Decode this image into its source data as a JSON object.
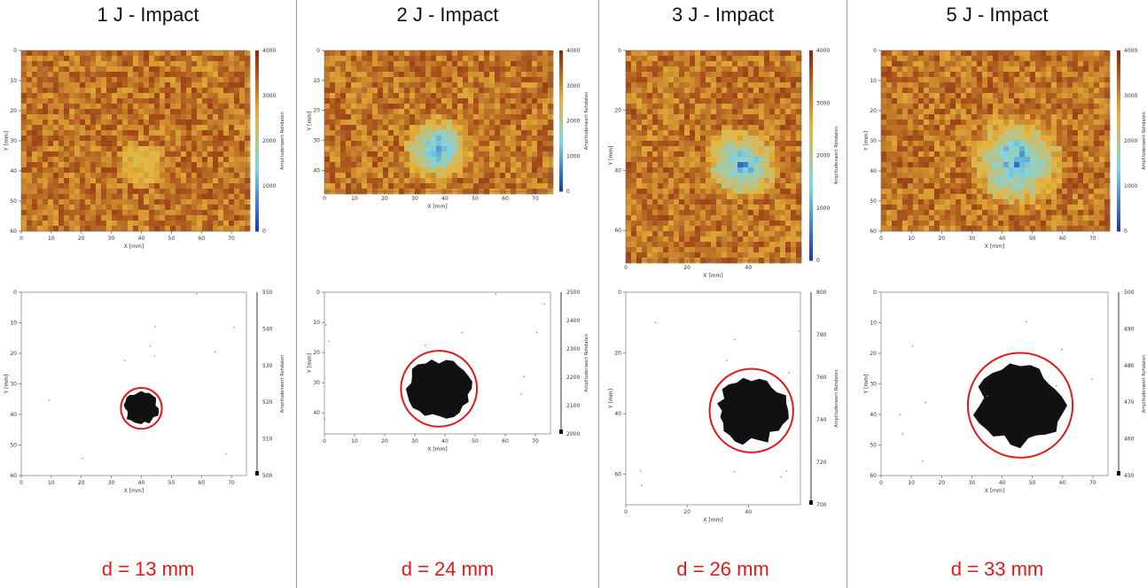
{
  "colors": {
    "heat_low": "#1d3fa8",
    "heat_mid": "#7fd6e6",
    "heat_high": "#e7b33a",
    "heat_max": "#8e2a10",
    "marker": "#e01a1a",
    "divider": "#9a9a9a"
  },
  "panels": [
    {
      "title": "1 J - Impact",
      "diameter_label": "d = 13 mm"
    },
    {
      "title": "2 J - Impact",
      "diameter_label": "d = 24 mm"
    },
    {
      "title": "3 J - Impact",
      "diameter_label": "d = 26 mm"
    },
    {
      "title": "5 J - Impact",
      "diameter_label": "d = 33 mm"
    }
  ],
  "chart_data": [
    {
      "type": "heatmap",
      "panel": "1 J - Impact",
      "view": "amplitude",
      "xlabel": "X [mm]",
      "ylabel": "Y [mm]",
      "colorbar_label": "Amplitudenwert Rohdaten",
      "xlim": [
        0,
        75
      ],
      "ylim": [
        0,
        60
      ],
      "y_inverted": true,
      "x_ticks": [
        0,
        10,
        20,
        30,
        40,
        50,
        60,
        70
      ],
      "y_ticks": [
        0,
        10,
        20,
        30,
        40,
        50,
        60
      ],
      "colorbar_range": [
        0,
        4000
      ],
      "colorbar_ticks": [
        0,
        1000,
        2000,
        3000,
        4000
      ],
      "damage_center": [
        40,
        38
      ],
      "damage_diameter_mm": 13
    },
    {
      "type": "heatmap",
      "panel": "1 J - Impact",
      "view": "thresholded",
      "xlabel": "X [mm]",
      "ylabel": "Y [mm]",
      "colorbar_label": "Amplitudenwert Rohdaten",
      "xlim": [
        0,
        75
      ],
      "ylim": [
        0,
        60
      ],
      "y_inverted": true,
      "x_ticks": [
        0,
        10,
        20,
        30,
        40,
        50,
        60,
        70
      ],
      "y_ticks": [
        0,
        10,
        20,
        30,
        40,
        50,
        60
      ],
      "colorbar_range": [
        500,
        550
      ],
      "colorbar_ticks": [
        500,
        510,
        520,
        530,
        540,
        550
      ],
      "damage_center": [
        40,
        38
      ],
      "damage_diameter_mm": 13
    },
    {
      "type": "heatmap",
      "panel": "2 J - Impact",
      "view": "amplitude",
      "xlabel": "X [mm]",
      "ylabel": "Y [mm]",
      "colorbar_label": "Amplitudenwert Rohdaten",
      "xlim": [
        0,
        75
      ],
      "ylim": [
        0,
        47
      ],
      "y_inverted": true,
      "x_ticks": [
        0,
        10,
        20,
        30,
        40,
        50,
        60,
        70
      ],
      "y_ticks": [
        0,
        10,
        20,
        30,
        40
      ],
      "colorbar_range": [
        0,
        4000
      ],
      "colorbar_ticks": [
        0,
        1000,
        2000,
        3000,
        4000
      ],
      "damage_center": [
        38,
        33
      ],
      "damage_diameter_mm": 24
    },
    {
      "type": "heatmap",
      "panel": "2 J - Impact",
      "view": "thresholded",
      "xlabel": "X [mm]",
      "ylabel": "Y [mm]",
      "colorbar_label": "Amplitudenwert Rohdaten",
      "xlim": [
        0,
        75
      ],
      "ylim": [
        0,
        47
      ],
      "y_inverted": true,
      "x_ticks": [
        0,
        10,
        20,
        30,
        40,
        50,
        60,
        70
      ],
      "y_ticks": [
        0,
        10,
        20,
        30,
        40
      ],
      "colorbar_range": [
        2000,
        2500
      ],
      "colorbar_ticks": [
        2000,
        2100,
        2200,
        2300,
        2400,
        2500
      ],
      "damage_center": [
        38,
        32
      ],
      "damage_diameter_mm": 24
    },
    {
      "type": "heatmap",
      "panel": "3 J - Impact",
      "view": "amplitude",
      "xlabel": "X [mm]",
      "ylabel": "Y [mm]",
      "colorbar_label": "Amplitudenwert Rohdaten",
      "xlim": [
        0,
        57
      ],
      "ylim": [
        0,
        70
      ],
      "y_inverted": true,
      "x_ticks": [
        0,
        20,
        40
      ],
      "y_ticks": [
        0,
        20,
        40,
        60
      ],
      "colorbar_range": [
        0,
        4000
      ],
      "colorbar_ticks": [
        0,
        1000,
        2000,
        3000,
        4000
      ],
      "damage_center": [
        38,
        38
      ],
      "damage_diameter_mm": 26
    },
    {
      "type": "heatmap",
      "panel": "3 J - Impact",
      "view": "thresholded",
      "xlabel": "X [mm]",
      "ylabel": "Y [mm]",
      "colorbar_label": "Amplitudenwert Rohdaten",
      "xlim": [
        0,
        57
      ],
      "ylim": [
        0,
        70
      ],
      "y_inverted": true,
      "x_ticks": [
        0,
        20,
        40
      ],
      "y_ticks": [
        0,
        20,
        40,
        60
      ],
      "colorbar_range": [
        700,
        800
      ],
      "colorbar_ticks": [
        700,
        720,
        740,
        760,
        780,
        800
      ],
      "damage_center": [
        41,
        39
      ],
      "damage_diameter_mm": 26
    },
    {
      "type": "heatmap",
      "panel": "5 J - Impact",
      "view": "amplitude",
      "xlabel": "X [mm]",
      "ylabel": "Y [mm]",
      "colorbar_label": "Amplitudenwert Rohdaten",
      "xlim": [
        0,
        75
      ],
      "ylim": [
        0,
        60
      ],
      "y_inverted": true,
      "x_ticks": [
        0,
        10,
        20,
        30,
        40,
        50,
        60,
        70
      ],
      "y_ticks": [
        0,
        10,
        20,
        30,
        40,
        50,
        60
      ],
      "colorbar_range": [
        0,
        4000
      ],
      "colorbar_ticks": [
        0,
        1000,
        2000,
        3000,
        4000
      ],
      "damage_center": [
        45,
        37
      ],
      "damage_diameter_mm": 33
    },
    {
      "type": "heatmap",
      "panel": "5 J - Impact",
      "view": "thresholded",
      "xlabel": "X [mm]",
      "ylabel": "Y [mm]",
      "colorbar_label": "Amplitudenwert Rohdaten",
      "xlim": [
        0,
        75
      ],
      "ylim": [
        0,
        60
      ],
      "y_inverted": true,
      "x_ticks": [
        0,
        10,
        20,
        30,
        40,
        50,
        60,
        70
      ],
      "y_ticks": [
        0,
        10,
        20,
        30,
        40,
        50,
        60
      ],
      "colorbar_range": [
        450,
        500
      ],
      "colorbar_ticks": [
        450,
        460,
        470,
        480,
        490,
        500
      ],
      "damage_center": [
        46,
        37
      ],
      "damage_diameter_mm": 33
    }
  ]
}
